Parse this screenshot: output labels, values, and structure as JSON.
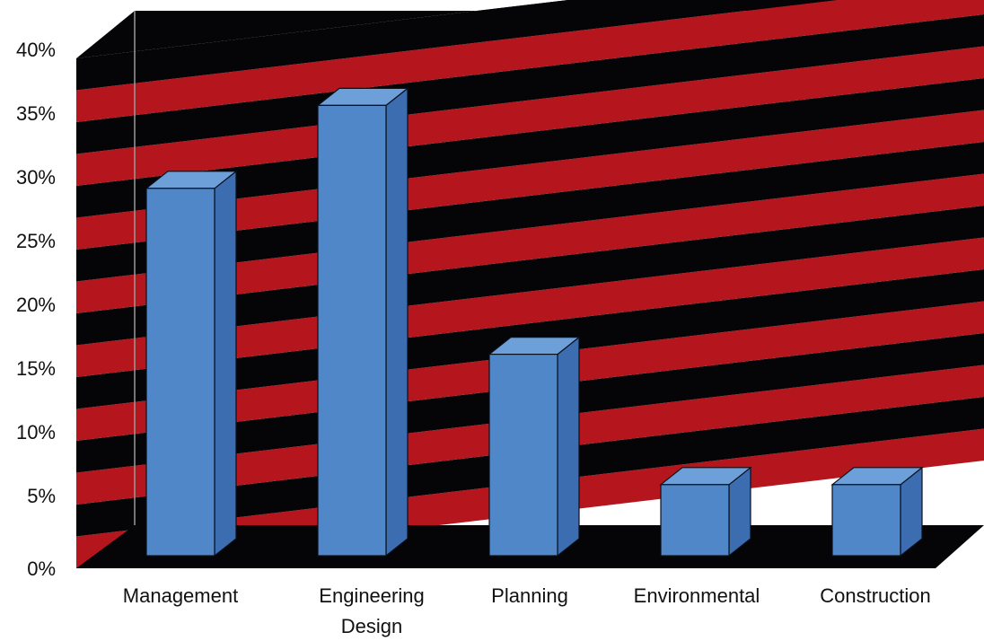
{
  "chart_data": {
    "type": "bar",
    "style": "3d-column",
    "categories": [
      "Management",
      "Engineering Design",
      "Planning",
      "Environmental",
      "Construction"
    ],
    "category_label_lines": [
      [
        "Management"
      ],
      [
        "Engineering",
        "Design"
      ],
      [
        "Planning"
      ],
      [
        "Environmental"
      ],
      [
        "Construction"
      ]
    ],
    "values": [
      31,
      38,
      17,
      6,
      6
    ],
    "ylim": [
      0,
      40
    ],
    "yticks": [
      "0%",
      "5%",
      "10%",
      "15%",
      "20%",
      "25%",
      "30%",
      "35%",
      "40%"
    ],
    "title": "",
    "xlabel": "",
    "ylabel": "",
    "grid": true,
    "legend": "none",
    "colors": {
      "bar_front": "#4f87c9",
      "bar_top": "#6d9fd8",
      "bar_side": "#3b6db0",
      "bar_edge": "#0a0f1a",
      "wall_band_red": "#b5161e",
      "wall_band_black": "#050508",
      "floor": "#050508",
      "axis_line": "#9a9a9a"
    }
  }
}
